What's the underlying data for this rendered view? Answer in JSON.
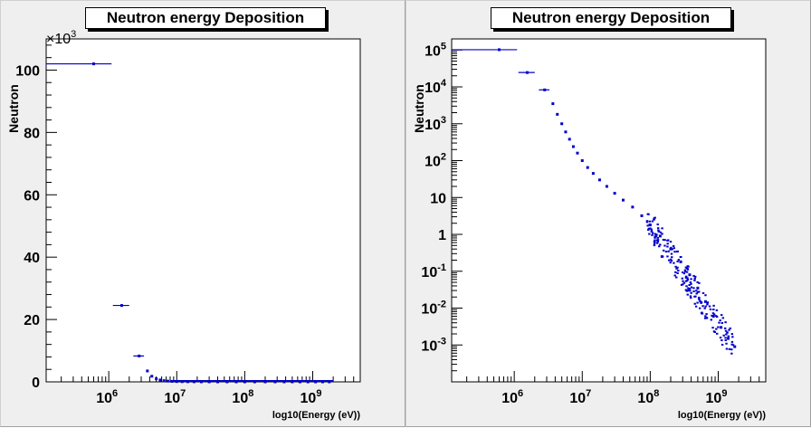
{
  "chart_data": [
    {
      "type": "scatter",
      "title": "Neutron energy Deposition",
      "xlabel": "log10(Energy (eV))",
      "ylabel": "Neutron",
      "x_scale": "log",
      "y_scale": "linear",
      "xlim": [
        120000,
        5000000000
      ],
      "ylim": [
        0,
        110000
      ],
      "y_multiplier_label": "×10",
      "y_multiplier_exp": "3",
      "x_tick_labels": [
        {
          "base": "10",
          "exp": "6",
          "value": 1000000
        },
        {
          "base": "10",
          "exp": "7",
          "value": 10000000
        },
        {
          "base": "10",
          "exp": "8",
          "value": 100000000
        },
        {
          "base": "10",
          "exp": "9",
          "value": 1000000000
        }
      ],
      "y_tick_labels": [
        {
          "label": "0",
          "value": 0
        },
        {
          "label": "20",
          "value": 20000
        },
        {
          "label": "40",
          "value": 40000
        },
        {
          "label": "60",
          "value": 60000
        },
        {
          "label": "80",
          "value": 80000
        },
        {
          "label": "100",
          "value": 100000
        }
      ],
      "color": "#0000cc",
      "grid": false,
      "legend": "none"
    },
    {
      "type": "scatter",
      "title": "Neutron energy Deposition",
      "xlabel": "log10(Energy (eV))",
      "ylabel": "Neutron",
      "x_scale": "log",
      "y_scale": "log",
      "xlim": [
        120000,
        5000000000
      ],
      "ylim": [
        0.0001,
        200000
      ],
      "x_tick_labels": [
        {
          "base": "10",
          "exp": "6",
          "value": 1000000
        },
        {
          "base": "10",
          "exp": "7",
          "value": 10000000
        },
        {
          "base": "10",
          "exp": "8",
          "value": 100000000
        },
        {
          "base": "10",
          "exp": "9",
          "value": 1000000000
        }
      ],
      "y_tick_labels": [
        {
          "base": "10",
          "exp": "-3",
          "value": 0.001
        },
        {
          "base": "10",
          "exp": "-2",
          "value": 0.01
        },
        {
          "base": "10",
          "exp": "-1",
          "value": 0.1
        },
        {
          "base": "",
          "exp": "",
          "label": "1",
          "value": 1
        },
        {
          "base": "",
          "exp": "",
          "label": "10",
          "value": 10
        },
        {
          "base": "10",
          "exp": "2",
          "value": 100
        },
        {
          "base": "10",
          "exp": "3",
          "value": 1000
        },
        {
          "base": "10",
          "exp": "4",
          "value": 10000
        },
        {
          "base": "10",
          "exp": "5",
          "value": 100000
        }
      ],
      "color": "#0000cc",
      "grid": false,
      "legend": "none"
    }
  ],
  "series_points": [
    {
      "x": 600000,
      "xlo": 120000,
      "xhi": 1100000,
      "y": 102000
    },
    {
      "x": 1550000,
      "xlo": 1150000,
      "xhi": 2000000,
      "y": 24500
    },
    {
      "x": 2800000,
      "xlo": 2300000,
      "xhi": 3300000,
      "y": 8300
    },
    {
      "x": 3700000,
      "y": 3500
    },
    {
      "x": 4300000,
      "y": 1800
    },
    {
      "x": 5000000,
      "y": 1000
    },
    {
      "x": 5700000,
      "y": 600
    },
    {
      "x": 6500000,
      "y": 380
    },
    {
      "x": 7400000,
      "y": 240
    },
    {
      "x": 8500000,
      "y": 160
    },
    {
      "x": 10000000,
      "y": 100
    },
    {
      "x": 12000000,
      "y": 65
    },
    {
      "x": 14500000,
      "y": 45
    },
    {
      "x": 18000000,
      "y": 30
    },
    {
      "x": 23000000,
      "y": 20
    },
    {
      "x": 30000000,
      "y": 13
    },
    {
      "x": 40000000,
      "y": 8.5
    },
    {
      "x": 55000000,
      "y": 5.5
    },
    {
      "x": 75000000,
      "y": 3.2
    },
    {
      "x": 100000000,
      "y": 1.8
    },
    {
      "x": 140000000,
      "y": 0.9
    },
    {
      "x": 200000000,
      "y": 0.4
    },
    {
      "x": 280000000,
      "y": 0.18
    },
    {
      "x": 380000000,
      "y": 0.08
    },
    {
      "x": 500000000,
      "y": 0.035
    },
    {
      "x": 650000000,
      "y": 0.015
    },
    {
      "x": 850000000,
      "y": 0.006
    },
    {
      "x": 1100000000,
      "y": 0.003
    },
    {
      "x": 1400000000,
      "y": 0.0015
    },
    {
      "x": 1750000000,
      "y": 0.0009
    }
  ]
}
